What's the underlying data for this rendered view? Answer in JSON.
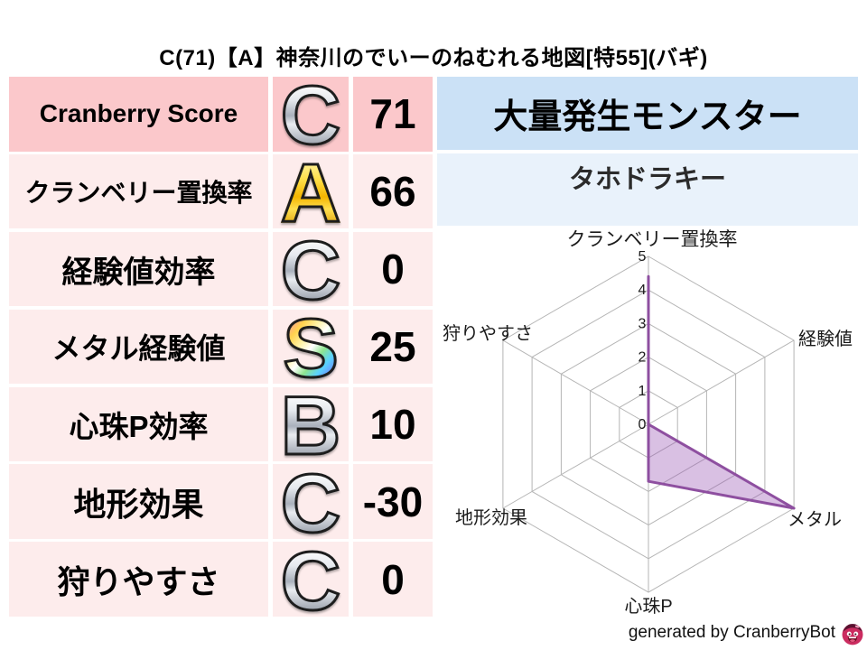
{
  "title": "C(71)【A】神奈川のでいーのねむれる地図[特55](バギ)",
  "stats_table": {
    "rows": [
      {
        "label": "Cranberry Score",
        "grade": "C",
        "grade_style": "silver",
        "value": "71"
      },
      {
        "label": "クランベリー置換率",
        "grade": "A",
        "grade_style": "gold",
        "value": "66"
      },
      {
        "label": "経験値効率",
        "grade": "C",
        "grade_style": "silver",
        "value": "0"
      },
      {
        "label": "メタル経験値",
        "grade": "S",
        "grade_style": "rainbow",
        "value": "25"
      },
      {
        "label": "心珠P効率",
        "grade": "B",
        "grade_style": "silver",
        "value": "10"
      },
      {
        "label": "地形効果",
        "grade": "C",
        "grade_style": "silver",
        "value": "-30"
      },
      {
        "label": "狩りやすさ",
        "grade": "C",
        "grade_style": "silver",
        "value": "0"
      }
    ]
  },
  "monster_panel": {
    "header": "大量発生モンスター",
    "name": "タホドラキー"
  },
  "footer": {
    "credit": "generated by CranberryBot",
    "mascot_icon": "cranberry-mascot-icon"
  },
  "colors": {
    "score_row_bg": "#fbc8cb",
    "stat_row_bg": "#fdecec",
    "monster_header_bg": "#cbe1f6",
    "monster_name_bg": "#e9f2fb",
    "radar_fill": "#9b59b6",
    "radar_fill_opacity": 0.38,
    "radar_line": "#8e4fa0",
    "radar_grid": "#b5b5b5",
    "radar_text": "#1b1b1b"
  },
  "chart_data": {
    "type": "radar",
    "title": "",
    "categories": [
      "クランベリー置換率",
      "経験値",
      "メタル",
      "心珠P",
      "地形効果",
      "狩りやすさ"
    ],
    "values": [
      4.4,
      0,
      5,
      1.7,
      0,
      0
    ],
    "ticks": [
      0,
      1,
      2,
      3,
      4,
      5
    ],
    "rlim": [
      0,
      5
    ],
    "grid": true,
    "grid_shape": "hexagon",
    "legend": false
  }
}
